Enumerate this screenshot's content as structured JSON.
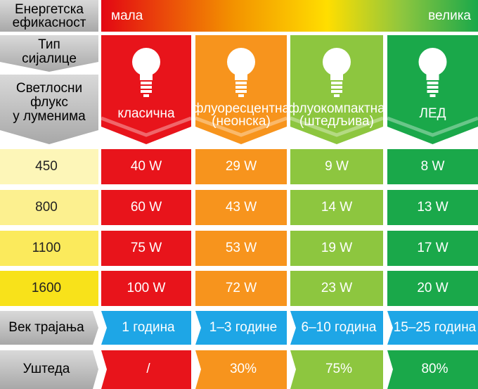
{
  "header": {
    "efficiency_label": [
      "Енергетска",
      "ефикасност"
    ],
    "low": "мала",
    "high": "велика"
  },
  "type_label": [
    "Тип",
    "сијалице"
  ],
  "flux_label": [
    "Светлосни",
    "флукс",
    "у луменима"
  ],
  "columns": [
    {
      "name": [
        "класична"
      ],
      "color": "#e8141b"
    },
    {
      "name": [
        "флуоресцентна",
        "(неонска)"
      ],
      "color": "#f7941d"
    },
    {
      "name": [
        "флуокомпактна",
        "(штедљива)"
      ],
      "color": "#8dc63f"
    },
    {
      "name": [
        "ЛЕД"
      ],
      "color": "#1aa84a"
    }
  ],
  "rows": [
    {
      "lumens": 450,
      "watts": [
        "40 W",
        "29 W",
        "9 W",
        "8 W"
      ]
    },
    {
      "lumens": 800,
      "watts": [
        "60 W",
        "43 W",
        "14 W",
        "13 W"
      ]
    },
    {
      "lumens": 1100,
      "watts": [
        "75 W",
        "53 W",
        "19 W",
        "17 W"
      ]
    },
    {
      "lumens": 1600,
      "watts": [
        "100 W",
        "72 W",
        "23 W",
        "20 W"
      ]
    }
  ],
  "lifespan": {
    "label": "Век трајања",
    "values": [
      "1 година",
      "1–3 године",
      "6–10 година",
      "15–25 година"
    ]
  },
  "savings": {
    "label": "Уштеда",
    "values": [
      "/",
      "30%",
      "75%",
      "80%"
    ]
  }
}
